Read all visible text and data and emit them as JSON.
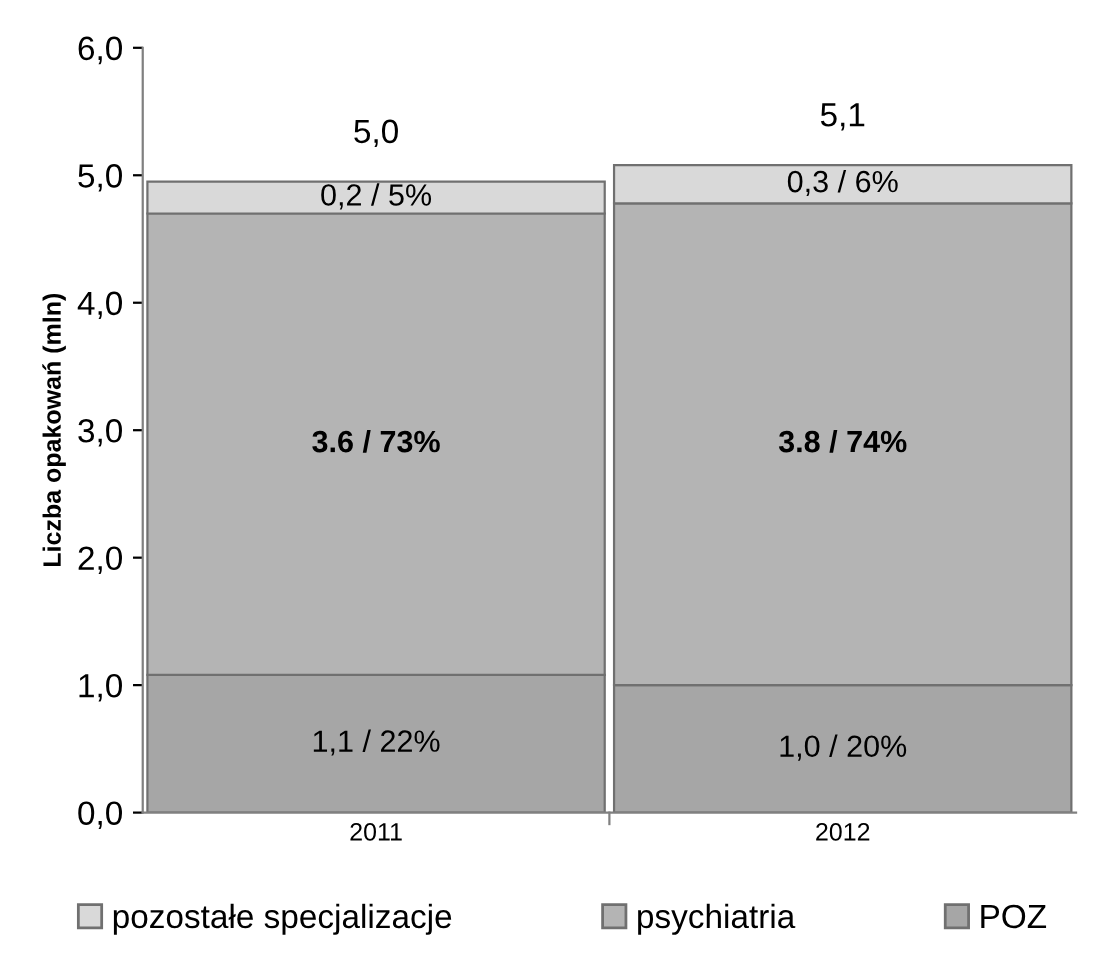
{
  "chart_data": {
    "type": "bar",
    "stacked": true,
    "ylabel": "Liczba opakowań (mln)",
    "categories": [
      "2011",
      "2012"
    ],
    "series": [
      {
        "name": "POZ",
        "color": "#a6a6a6",
        "values": [
          1.08,
          1.0
        ],
        "value_labels": [
          "1,1 / 22%",
          "1,0 / 20%"
        ]
      },
      {
        "name": "psychiatria",
        "color": "#b4b4b4",
        "values": [
          3.62,
          3.78
        ],
        "value_labels": [
          "3.6 / 73%",
          "3.8 / 74%"
        ]
      },
      {
        "name": "pozostałe specjalizacje",
        "color": "#d9d9d9",
        "values": [
          0.25,
          0.3
        ],
        "value_labels": [
          "0,2 / 5%",
          "0,3 / 6%"
        ]
      }
    ],
    "totals": [
      "5,0",
      "5,1"
    ],
    "ylim": [
      0,
      6
    ],
    "yticks": [
      {
        "value": 0,
        "label": "0,0"
      },
      {
        "value": 1,
        "label": "1,0"
      },
      {
        "value": 2,
        "label": "2,0"
      },
      {
        "value": 3,
        "label": "3,0"
      },
      {
        "value": 4,
        "label": "4,0"
      },
      {
        "value": 5,
        "label": "5,0"
      },
      {
        "value": 6,
        "label": "6,0"
      }
    ],
    "grid": false,
    "legend": "bottom"
  }
}
